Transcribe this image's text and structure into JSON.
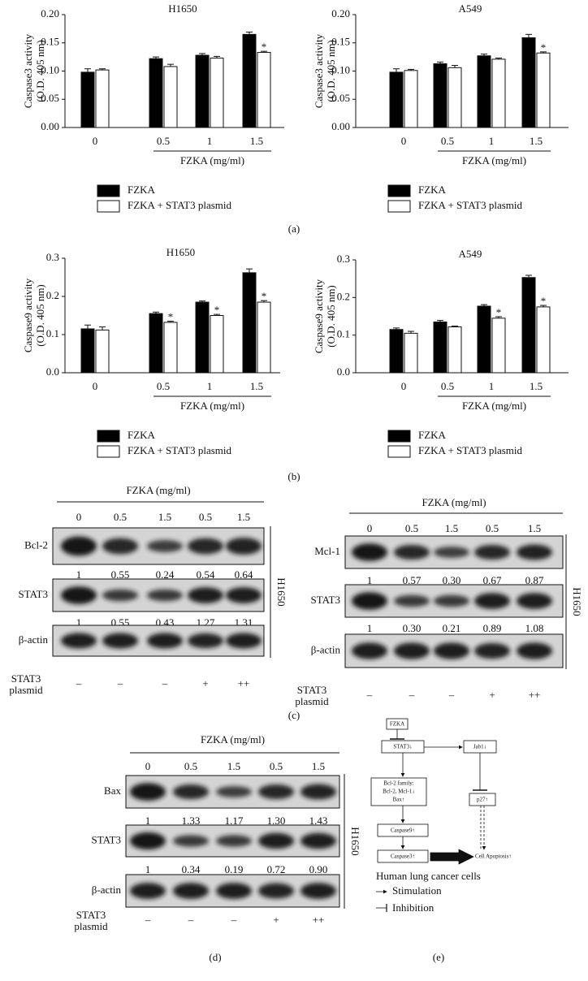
{
  "chart_data": [
    {
      "type": "bar",
      "title": "H1650",
      "ylabel": [
        "Caspase3 activity",
        "(O.D. 405 nm)"
      ],
      "xlabel": "FZKA (mg/ml)",
      "categories": [
        "0",
        "0.5",
        "1",
        "1.5"
      ],
      "ylim": [
        0,
        0.2
      ],
      "yticks": [
        {
          "value": 0,
          "label": "0.00"
        },
        0.05,
        {
          "value": 0.1,
          "label": "0.10"
        },
        0.15,
        {
          "value": 0.2,
          "label": "0.20"
        }
      ],
      "series": [
        {
          "name": "FZKA",
          "color": "#000000",
          "values": [
            0.098,
            0.122,
            0.128,
            0.165
          ],
          "errors": [
            0.006,
            0.003,
            0.003,
            0.004
          ]
        },
        {
          "name": "FZKA + STAT3 plasmid",
          "color": "#ffffff",
          "values": [
            0.102,
            0.108,
            0.123,
            0.133
          ],
          "errors": [
            0.002,
            0.004,
            0.003,
            0.002
          ],
          "annotations": [
            null,
            null,
            null,
            "*"
          ]
        }
      ]
    },
    {
      "type": "bar",
      "title": "A549",
      "ylabel": [
        "Caspase3 activity",
        "(O.D. 405 nm)"
      ],
      "xlabel": "FZKA (mg/ml)",
      "categories": [
        "0",
        "0.5",
        "1",
        "1.5"
      ],
      "ylim": [
        0,
        0.2
      ],
      "yticks": [
        {
          "value": 0,
          "label": "0.00"
        },
        0.05,
        {
          "value": 0.1,
          "label": "0.10"
        },
        0.15,
        {
          "value": 0.2,
          "label": "0.20"
        }
      ],
      "series": [
        {
          "name": "FZKA",
          "color": "#000000",
          "values": [
            0.098,
            0.113,
            0.127,
            0.159
          ],
          "errors": [
            0.006,
            0.003,
            0.003,
            0.006
          ]
        },
        {
          "name": "FZKA + STAT3 plasmid",
          "color": "#ffffff",
          "values": [
            0.101,
            0.106,
            0.121,
            0.132
          ],
          "errors": [
            0.002,
            0.004,
            0.002,
            0.002
          ],
          "annotations": [
            null,
            null,
            null,
            "*"
          ]
        }
      ]
    },
    {
      "type": "bar",
      "title": "H1650",
      "ylabel": [
        "Caspase9 activity",
        "(O.D. 405 nm)"
      ],
      "xlabel": "FZKA (mg/ml)",
      "categories": [
        "0",
        "0.5",
        "1",
        "1.5"
      ],
      "ylim": [
        0,
        0.3
      ],
      "yticks": [
        {
          "value": 0,
          "label": "0.0"
        },
        0.1,
        0.2,
        0.3
      ],
      "series": [
        {
          "name": "FZKA",
          "color": "#000000",
          "values": [
            0.115,
            0.155,
            0.185,
            0.262
          ],
          "errors": [
            0.01,
            0.004,
            0.003,
            0.01
          ]
        },
        {
          "name": "FZKA + STAT3 plasmid",
          "color": "#ffffff",
          "values": [
            0.112,
            0.132,
            0.15,
            0.185
          ],
          "errors": [
            0.008,
            0.003,
            0.003,
            0.004
          ],
          "annotations": [
            null,
            "*",
            "*",
            "*"
          ]
        }
      ]
    },
    {
      "type": "bar",
      "title": "A549",
      "ylabel": [
        "Caspase9 activity",
        "(O.D. 405 nm)"
      ],
      "xlabel": "FZKA (mg/ml)",
      "categories": [
        "0",
        "0.5",
        "1",
        "1.5"
      ],
      "ylim": [
        0,
        0.3
      ],
      "yticks": [
        {
          "value": 0,
          "label": "0.0"
        },
        0.1,
        0.2,
        0.3
      ],
      "series": [
        {
          "name": "FZKA",
          "color": "#000000",
          "values": [
            0.115,
            0.135,
            0.177,
            0.253
          ],
          "errors": [
            0.004,
            0.004,
            0.004,
            0.006
          ]
        },
        {
          "name": "FZKA + STAT3 plasmid",
          "color": "#ffffff",
          "values": [
            0.105,
            0.122,
            0.145,
            0.175
          ],
          "errors": [
            0.005,
            0.002,
            0.004,
            0.004
          ],
          "annotations": [
            null,
            null,
            "*",
            "*"
          ]
        }
      ]
    }
  ],
  "panel_labels": [
    "(a)",
    "(b)",
    "(c)",
    "(d)",
    "(e)"
  ],
  "blots": [
    {
      "title": "FZKA (mg/ml)",
      "lanes": [
        "0",
        "0.5",
        "1.5",
        "0.5",
        "1.5"
      ],
      "cell_line": "H1650",
      "rows": [
        {
          "label": "Bcl-2",
          "ratios": [
            "1",
            "0.55",
            "0.24",
            "0.54",
            "0.64"
          ]
        },
        {
          "label": "STAT3",
          "ratios": [
            "1",
            "0.55",
            "0.43",
            "1.27",
            "1.31"
          ]
        },
        {
          "label": "β-actin"
        }
      ],
      "plasmid_label": [
        "STAT3",
        "plasmid"
      ],
      "plasmid": [
        "–",
        "–",
        "–",
        "+",
        "++"
      ]
    },
    {
      "title": "FZKA (mg/ml)",
      "lanes": [
        "0",
        "0.5",
        "1.5",
        "0.5",
        "1.5"
      ],
      "cell_line": "H1650",
      "rows": [
        {
          "label": "Mcl-1",
          "ratios": [
            "1",
            "0.57",
            "0.30",
            "0.67",
            "0.87"
          ]
        },
        {
          "label": "STAT3",
          "ratios": [
            "1",
            "0.30",
            "0.21",
            "0.89",
            "1.08"
          ]
        },
        {
          "label": "β-actin"
        }
      ],
      "plasmid_label": [
        "STAT3",
        "plasmid"
      ],
      "plasmid": [
        "–",
        "–",
        "–",
        "+",
        "++"
      ]
    },
    {
      "title": "FZKA (mg/ml)",
      "lanes": [
        "0",
        "0.5",
        "1.5",
        "0.5",
        "1.5"
      ],
      "cell_line": "H1650",
      "rows": [
        {
          "label": "Bax",
          "ratios": [
            "1",
            "1.33",
            "1.17",
            "1.30",
            "1.43"
          ]
        },
        {
          "label": "STAT3",
          "ratios": [
            "1",
            "0.34",
            "0.19",
            "0.72",
            "0.90"
          ]
        },
        {
          "label": "β-actin"
        }
      ],
      "plasmid_label": [
        "STAT3",
        "plasmid"
      ],
      "plasmid": [
        "–",
        "–",
        "–",
        "+",
        "++"
      ]
    }
  ],
  "diagram": {
    "nodes": [
      "FZKA",
      "STAT3↓",
      "Jab1↓",
      "p27↑",
      "Caspase9↑",
      "Caspase3↑",
      "Cell Apoptosis↑"
    ],
    "bcl2_box": [
      "Bcl-2 family:",
      "Bcl-2, Mcl-1↓",
      "Bax↑"
    ],
    "caption": "Human lung cancer cells",
    "legend": [
      "Stimulation",
      "Inhibition"
    ]
  }
}
